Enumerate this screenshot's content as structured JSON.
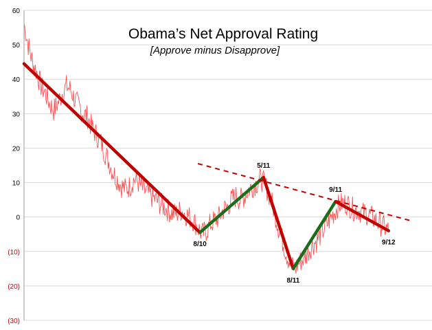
{
  "chart_data": {
    "type": "line",
    "title": "Obama’s Net Approval Rating",
    "subtitle": "[Approve minus Disapprove]",
    "xlabel": "",
    "ylabel": "",
    "ylim": [
      -30,
      60
    ],
    "yticks": [
      60,
      50,
      40,
      30,
      20,
      10,
      0,
      -10,
      -20,
      -30
    ],
    "ytick_labels": [
      "60",
      "50",
      "40",
      "30",
      "20",
      "10",
      "0",
      "(10)",
      "(20)",
      "(30)"
    ],
    "negative_tick_color": "#cc0000",
    "grid": {
      "horizontal": true,
      "color": "#d9d9d9"
    },
    "legend": "none",
    "series": [
      {
        "style": "thin-line",
        "color": "#ff5050",
        "points": [
          [
            0,
            56
          ],
          [
            2,
            50
          ],
          [
            4,
            45
          ],
          [
            6,
            42
          ],
          [
            8,
            38
          ],
          [
            10,
            36
          ],
          [
            12,
            33
          ],
          [
            14,
            31
          ],
          [
            16,
            33
          ],
          [
            18,
            36
          ],
          [
            20,
            38
          ],
          [
            22,
            37
          ],
          [
            24,
            34
          ],
          [
            26,
            32
          ],
          [
            28,
            30
          ],
          [
            30,
            29
          ],
          [
            32,
            26
          ],
          [
            34,
            24
          ],
          [
            36,
            22
          ],
          [
            38,
            19
          ],
          [
            40,
            16
          ],
          [
            42,
            13
          ],
          [
            44,
            11
          ],
          [
            46,
            9
          ],
          [
            48,
            8
          ],
          [
            50,
            9
          ],
          [
            52,
            11
          ],
          [
            54,
            10
          ],
          [
            56,
            8
          ],
          [
            58,
            7
          ],
          [
            60,
            6
          ],
          [
            62,
            5
          ],
          [
            64,
            4
          ],
          [
            66,
            3
          ],
          [
            68,
            2
          ],
          [
            70,
            1
          ],
          [
            72,
            1
          ],
          [
            74,
            2
          ],
          [
            76,
            1
          ],
          [
            78,
            0
          ],
          [
            80,
            -1
          ],
          [
            82,
            -3
          ],
          [
            84,
            -5
          ],
          [
            86,
            -4
          ],
          [
            88,
            -2
          ],
          [
            90,
            -1
          ],
          [
            92,
            0
          ],
          [
            94,
            2
          ],
          [
            96,
            3
          ],
          [
            98,
            5
          ],
          [
            100,
            6
          ],
          [
            102,
            5
          ],
          [
            104,
            6
          ],
          [
            106,
            8
          ],
          [
            108,
            9
          ],
          [
            110,
            10
          ],
          [
            112,
            11
          ],
          [
            114,
            9
          ],
          [
            116,
            6
          ],
          [
            118,
            2
          ],
          [
            120,
            -3
          ],
          [
            122,
            -7
          ],
          [
            124,
            -11
          ],
          [
            126,
            -14
          ],
          [
            128,
            -15
          ],
          [
            130,
            -13
          ],
          [
            132,
            -12
          ],
          [
            134,
            -10
          ],
          [
            136,
            -8
          ],
          [
            138,
            -7
          ],
          [
            140,
            -5
          ],
          [
            142,
            -3
          ],
          [
            144,
            -1
          ],
          [
            146,
            1
          ],
          [
            148,
            3
          ],
          [
            150,
            4
          ],
          [
            152,
            4
          ],
          [
            154,
            3
          ],
          [
            156,
            2
          ],
          [
            158,
            2
          ],
          [
            160,
            1
          ],
          [
            162,
            1
          ],
          [
            164,
            0
          ],
          [
            166,
            -1
          ],
          [
            168,
            -2
          ],
          [
            170,
            -3
          ],
          [
            172,
            -4
          ]
        ]
      },
      {
        "style": "trend",
        "color": "#c00000",
        "points": [
          [
            0,
            44.5
          ],
          [
            83,
            -4.5
          ]
        ]
      },
      {
        "style": "trend",
        "color": "#1a6e1a",
        "points": [
          [
            83,
            -4.5
          ],
          [
            113,
            11.5
          ]
        ]
      },
      {
        "style": "trend",
        "color": "#c00000",
        "points": [
          [
            113,
            11.5
          ],
          [
            127,
            -15
          ]
        ]
      },
      {
        "style": "trend",
        "color": "#1a6e1a",
        "points": [
          [
            127,
            -15
          ],
          [
            147,
            4.5
          ]
        ]
      },
      {
        "style": "trend",
        "color": "#c00000",
        "points": [
          [
            147,
            4.5
          ],
          [
            172,
            -4
          ]
        ]
      },
      {
        "style": "dashed-trend",
        "color": "#c00000",
        "points": [
          [
            82,
            15.5
          ],
          [
            182,
            -1
          ]
        ]
      }
    ],
    "annotations": [
      {
        "text": "8/10",
        "x": 83,
        "y": -4.5,
        "position": "below"
      },
      {
        "text": "5/11",
        "x": 113,
        "y": 11.5,
        "position": "above"
      },
      {
        "text": "8/11",
        "x": 127,
        "y": -15,
        "position": "below"
      },
      {
        "text": "9/11",
        "x": 147,
        "y": 4.5,
        "position": "above"
      },
      {
        "text": "9/12",
        "x": 172,
        "y": -4,
        "position": "below"
      }
    ]
  }
}
